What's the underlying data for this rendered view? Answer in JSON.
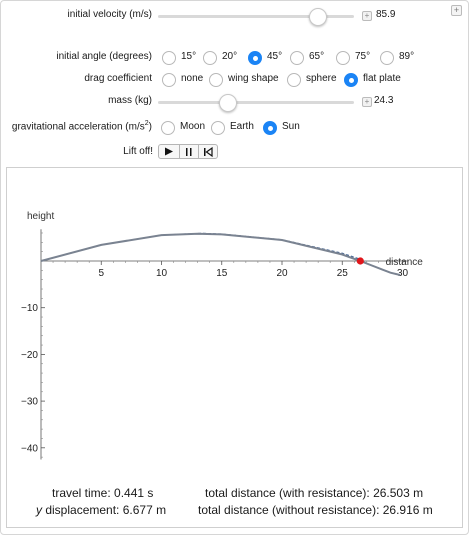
{
  "controls": {
    "velocity": {
      "label": "initial velocity (m/s)",
      "value": "85.9",
      "fraction": 0.81
    },
    "angle": {
      "label": "initial angle (degrees)",
      "options": [
        "15°",
        "20°",
        "45°",
        "65°",
        "75°",
        "89°"
      ],
      "selected": 2
    },
    "drag": {
      "label": "drag coefficient",
      "options": [
        "none",
        "wing shape",
        "sphere",
        "flat plate"
      ],
      "selected": 3
    },
    "mass": {
      "label": "mass (kg)",
      "value": "24.3",
      "fraction": 0.35
    },
    "gravity": {
      "label_main": "gravitational acceleration (m/s",
      "label_sup": "2",
      "label_end": ")",
      "options": [
        "Moon",
        "Earth",
        "Sun"
      ],
      "selected": 2
    },
    "liftoff": {
      "label": "Lift off!"
    }
  },
  "plot": {
    "y_axis_label": "height",
    "x_axis_label": "distance",
    "x_ticks": [
      "5",
      "10",
      "15",
      "20",
      "25",
      "30"
    ],
    "y_ticks": [
      "−10",
      "−20",
      "−30",
      "−40"
    ],
    "colors": {
      "with_resistance": "#7a8391",
      "without_resistance": "#4a6a98",
      "marker": "#e0161b"
    }
  },
  "chart_data": {
    "type": "line",
    "xlabel": "distance",
    "ylabel": "height",
    "xlim": [
      0,
      31
    ],
    "ylim": [
      -44,
      6
    ],
    "series": [
      {
        "points": [
          [
            0,
            0
          ],
          [
            5,
            3.45
          ],
          [
            10,
            5.55
          ],
          [
            13,
            5.85
          ],
          [
            15,
            5.7
          ],
          [
            20,
            4.5
          ],
          [
            25,
            1.4
          ],
          [
            26.5,
            0
          ],
          [
            29,
            -2.5
          ],
          [
            29.8,
            -3
          ]
        ]
      },
      {
        "points": [
          [
            0,
            0
          ],
          [
            5,
            3.45
          ],
          [
            10,
            5.55
          ],
          [
            13.4,
            5.9
          ],
          [
            15,
            5.75
          ],
          [
            20,
            4.55
          ],
          [
            25,
            1.65
          ],
          [
            26.9,
            0
          ]
        ]
      }
    ],
    "marker": {
      "x": 26.5,
      "y": 0
    }
  },
  "stats": {
    "travel_time": "travel time: 0.441 s",
    "y_disp_var": "y",
    "y_disp_rest": " displacement: 6.677 m",
    "dist_with": "total distance (with resistance): 26.503 m",
    "dist_without": "total distance (without resistance): 26.916 m"
  }
}
